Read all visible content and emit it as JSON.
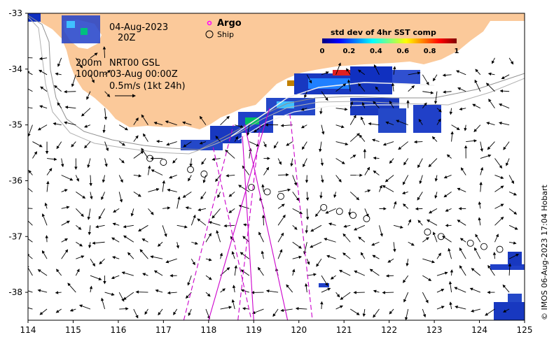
{
  "date": "04-Aug-2023",
  "hour": "20Z",
  "isobath_200": "200m",
  "isobath_1000": "1000m",
  "product": "NRT00 GSL",
  "product_time": "03-Aug 00:00Z",
  "scale_vector": "0.5m/s (1kt 24h)",
  "legend": {
    "argo": "Argo",
    "ship": "Ship"
  },
  "colorbar": {
    "title": "std dev of 4hr SST comp",
    "ticks": [
      "0",
      "0.2",
      "0.4",
      "0.6",
      "0.8",
      "1"
    ],
    "colors": [
      "#000080",
      "#0000ff",
      "#0080ff",
      "#00ffff",
      "#80ff80",
      "#ffff00",
      "#ff8000",
      "#ff0000",
      "#800000"
    ]
  },
  "axes": {
    "x_ticks": [
      "114",
      "115",
      "116",
      "117",
      "118",
      "119",
      "120",
      "121",
      "122",
      "123",
      "124",
      "125"
    ],
    "y_ticks": [
      "-33",
      "-34",
      "-35",
      "-36",
      "-37",
      "-38"
    ],
    "xlim": [
      114,
      125
    ],
    "ylim": [
      -38.5,
      -33
    ]
  },
  "credit": "© IMOS 06-Aug-2023 17:04 Hobart",
  "colors": {
    "land": "#fbc99a",
    "argo": "#ff00ff",
    "track": "#cc00cc"
  },
  "ship_positions": [
    [
      116.7,
      -35.6
    ],
    [
      117.0,
      -35.67
    ],
    [
      117.6,
      -35.8
    ],
    [
      117.9,
      -35.88
    ],
    [
      118.95,
      -36.12
    ],
    [
      119.3,
      -36.2
    ],
    [
      119.6,
      -36.28
    ],
    [
      120.55,
      -36.48
    ],
    [
      120.9,
      -36.55
    ],
    [
      121.2,
      -36.62
    ],
    [
      121.5,
      -36.68
    ],
    [
      122.85,
      -36.92
    ],
    [
      123.15,
      -37.0
    ],
    [
      123.8,
      -37.12
    ],
    [
      124.1,
      -37.18
    ],
    [
      124.45,
      -37.23
    ]
  ],
  "argo_tracks": [
    {
      "style": "solid",
      "points": [
        [
          118.0,
          -38.5
        ],
        [
          119.35,
          -34.7
        ]
      ]
    },
    {
      "style": "solid",
      "points": [
        [
          119.0,
          -38.5
        ],
        [
          118.75,
          -35.2
        ]
      ]
    },
    {
      "style": "solid",
      "points": [
        [
          119.75,
          -38.5
        ],
        [
          118.8,
          -35.0
        ]
      ]
    },
    {
      "style": "dashed",
      "points": [
        [
          117.45,
          -38.5
        ],
        [
          118.55,
          -35.0
        ]
      ]
    },
    {
      "style": "dashed",
      "points": [
        [
          118.1,
          -35.4
        ],
        [
          118.95,
          -38.5
        ]
      ]
    },
    {
      "style": "dashed",
      "points": [
        [
          118.65,
          -38.5
        ],
        [
          119.15,
          -34.95
        ]
      ]
    },
    {
      "style": "dashed",
      "points": [
        [
          119.8,
          -34.8
        ],
        [
          120.3,
          -38.5
        ]
      ]
    }
  ]
}
